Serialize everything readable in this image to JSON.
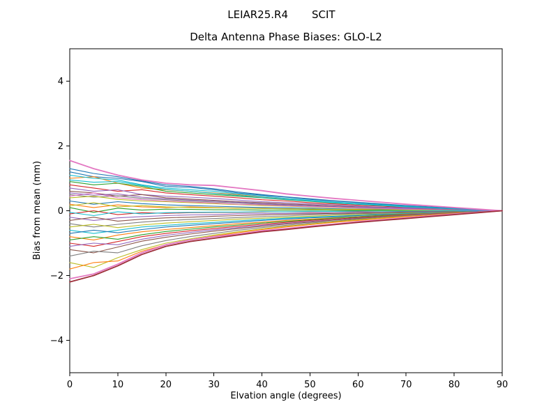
{
  "header": {
    "left": "LEIAR25.R4",
    "right": "SCIT"
  },
  "chart_data": {
    "type": "line",
    "title": "Delta Antenna Phase Biases: GLO-L2",
    "xlabel": "Elvation angle (degrees)",
    "ylabel": "Bias from mean (mm)",
    "xlim": [
      0,
      90
    ],
    "ylim": [
      -5,
      5
    ],
    "xticks": [
      0,
      10,
      20,
      30,
      40,
      50,
      60,
      70,
      80,
      90
    ],
    "yticks": [
      -4,
      -2,
      0,
      2,
      4
    ],
    "grid": false,
    "legend": "none",
    "x": [
      0,
      5,
      10,
      15,
      20,
      25,
      30,
      35,
      40,
      45,
      50,
      55,
      60,
      65,
      70,
      75,
      80,
      85,
      90
    ],
    "series": [
      {
        "color": "#1f77b4",
        "values": [
          1.2,
          1.05,
          1.0,
          0.9,
          0.75,
          0.72,
          0.65,
          0.55,
          0.48,
          0.42,
          0.35,
          0.3,
          0.25,
          0.2,
          0.15,
          0.11,
          0.07,
          0.03,
          0
        ]
      },
      {
        "color": "#ff7f0e",
        "values": [
          1.0,
          1.05,
          0.85,
          0.7,
          0.65,
          0.6,
          0.55,
          0.5,
          0.42,
          0.36,
          0.3,
          0.26,
          0.21,
          0.17,
          0.13,
          0.1,
          0.06,
          0.03,
          0
        ]
      },
      {
        "color": "#2ca02c",
        "values": [
          0.9,
          0.8,
          0.85,
          0.75,
          0.6,
          0.55,
          0.5,
          0.45,
          0.4,
          0.34,
          0.29,
          0.24,
          0.2,
          0.16,
          0.12,
          0.09,
          0.06,
          0.03,
          0
        ]
      },
      {
        "color": "#d62728",
        "values": [
          0.8,
          0.7,
          0.6,
          0.65,
          0.55,
          0.5,
          0.45,
          0.4,
          0.34,
          0.3,
          0.25,
          0.21,
          0.17,
          0.14,
          0.1,
          0.08,
          0.05,
          0.02,
          0
        ]
      },
      {
        "color": "#9467bd",
        "values": [
          0.7,
          0.6,
          0.65,
          0.5,
          0.45,
          0.42,
          0.38,
          0.33,
          0.28,
          0.25,
          0.21,
          0.18,
          0.14,
          0.11,
          0.09,
          0.06,
          0.04,
          0.02,
          0
        ]
      },
      {
        "color": "#8c564b",
        "values": [
          0.6,
          0.55,
          0.45,
          0.5,
          0.4,
          0.36,
          0.32,
          0.28,
          0.25,
          0.21,
          0.18,
          0.15,
          0.12,
          0.1,
          0.07,
          0.05,
          0.03,
          0.01,
          0
        ]
      },
      {
        "color": "#7f7f7f",
        "values": [
          0.5,
          0.42,
          0.46,
          0.38,
          0.34,
          0.3,
          0.27,
          0.24,
          0.2,
          0.17,
          0.14,
          0.12,
          0.1,
          0.08,
          0.06,
          0.04,
          0.02,
          0.01,
          0
        ]
      },
      {
        "color": "#bcbd22",
        "values": [
          0.4,
          0.45,
          0.35,
          0.3,
          0.28,
          0.25,
          0.22,
          0.19,
          0.16,
          0.14,
          0.12,
          0.1,
          0.08,
          0.06,
          0.05,
          0.03,
          0.02,
          0.01,
          0
        ]
      },
      {
        "color": "#17becf",
        "values": [
          1.1,
          1.0,
          0.95,
          0.8,
          0.7,
          0.65,
          0.6,
          0.52,
          0.45,
          0.38,
          0.32,
          0.27,
          0.22,
          0.18,
          0.14,
          0.1,
          0.07,
          0.03,
          0
        ]
      },
      {
        "color": "#1f77b4",
        "values": [
          0.3,
          0.2,
          0.28,
          0.22,
          0.18,
          0.16,
          0.14,
          0.12,
          0.1,
          0.09,
          0.08,
          0.06,
          0.05,
          0.04,
          0.03,
          0.02,
          0.01,
          0.01,
          0
        ]
      },
      {
        "color": "#ff7f0e",
        "values": [
          0.2,
          0.1,
          0.18,
          0.12,
          0.1,
          0.12,
          0.1,
          0.08,
          0.07,
          0.06,
          0.05,
          0.04,
          0.04,
          0.03,
          0.02,
          0.02,
          0.01,
          0,
          0
        ]
      },
      {
        "color": "#2ca02c",
        "values": [
          0.1,
          -0.05,
          0.08,
          0.02,
          0.05,
          0.04,
          0.03,
          0.03,
          0.02,
          0.02,
          0.02,
          0.01,
          0.01,
          0.01,
          0.01,
          0,
          0,
          0,
          0
        ]
      },
      {
        "color": "#d62728",
        "values": [
          -0.1,
          0,
          -0.12,
          -0.06,
          -0.08,
          -0.06,
          -0.05,
          -0.05,
          -0.04,
          -0.03,
          -0.03,
          -0.02,
          -0.02,
          -0.01,
          -0.01,
          -0.01,
          0,
          0,
          0
        ]
      },
      {
        "color": "#9467bd",
        "values": [
          -0.2,
          -0.3,
          -0.22,
          -0.18,
          -0.15,
          -0.13,
          -0.12,
          -0.1,
          -0.09,
          -0.08,
          -0.07,
          -0.06,
          -0.05,
          -0.04,
          -0.03,
          -0.02,
          -0.01,
          -0.01,
          0
        ]
      },
      {
        "color": "#8c564b",
        "values": [
          -0.3,
          -0.2,
          -0.32,
          -0.26,
          -0.22,
          -0.2,
          -0.17,
          -0.15,
          -0.13,
          -0.11,
          -0.1,
          -0.08,
          -0.07,
          -0.05,
          -0.04,
          -0.03,
          -0.02,
          -0.01,
          0
        ]
      },
      {
        "color": "#7f7f7f",
        "values": [
          -0.4,
          -0.5,
          -0.42,
          -0.35,
          -0.3,
          -0.27,
          -0.24,
          -0.21,
          -0.18,
          -0.16,
          -0.13,
          -0.11,
          -0.09,
          -0.08,
          -0.06,
          -0.04,
          -0.03,
          -0.01,
          0
        ]
      },
      {
        "color": "#bcbd22",
        "values": [
          -0.5,
          -0.42,
          -0.52,
          -0.44,
          -0.38,
          -0.34,
          -0.3,
          -0.26,
          -0.23,
          -0.2,
          -0.17,
          -0.14,
          -0.12,
          -0.1,
          -0.08,
          -0.06,
          -0.04,
          -0.02,
          0
        ]
      },
      {
        "color": "#17becf",
        "values": [
          -0.6,
          -0.7,
          -0.6,
          -0.5,
          -0.45,
          -0.4,
          -0.36,
          -0.31,
          -0.27,
          -0.23,
          -0.2,
          -0.17,
          -0.14,
          -0.11,
          -0.09,
          -0.06,
          -0.04,
          -0.02,
          0
        ]
      },
      {
        "color": "#1f77b4",
        "values": [
          -0.7,
          -0.6,
          -0.68,
          -0.58,
          -0.5,
          -0.45,
          -0.4,
          -0.35,
          -0.3,
          -0.26,
          -0.22,
          -0.19,
          -0.15,
          -0.12,
          -0.1,
          -0.07,
          -0.05,
          -0.02,
          0
        ]
      },
      {
        "color": "#ff7f0e",
        "values": [
          -0.8,
          -0.9,
          -0.75,
          -0.65,
          -0.58,
          -0.52,
          -0.46,
          -0.4,
          -0.35,
          -0.3,
          -0.26,
          -0.22,
          -0.18,
          -0.14,
          -0.11,
          -0.08,
          -0.05,
          -0.03,
          0
        ]
      },
      {
        "color": "#2ca02c",
        "values": [
          -0.9,
          -0.8,
          -0.88,
          -0.74,
          -0.64,
          -0.57,
          -0.5,
          -0.44,
          -0.38,
          -0.33,
          -0.28,
          -0.23,
          -0.19,
          -0.15,
          -0.12,
          -0.09,
          -0.06,
          -0.03,
          0
        ]
      },
      {
        "color": "#d62728",
        "values": [
          -1.0,
          -1.1,
          -0.95,
          -0.8,
          -0.7,
          -0.62,
          -0.55,
          -0.48,
          -0.42,
          -0.36,
          -0.3,
          -0.26,
          -0.21,
          -0.17,
          -0.13,
          -0.1,
          -0.06,
          -0.03,
          0
        ]
      },
      {
        "color": "#9467bd",
        "values": [
          -1.1,
          -1.0,
          -1.05,
          -0.88,
          -0.76,
          -0.67,
          -0.59,
          -0.52,
          -0.45,
          -0.39,
          -0.33,
          -0.28,
          -0.23,
          -0.18,
          -0.14,
          -0.1,
          -0.07,
          -0.03,
          0
        ]
      },
      {
        "color": "#8c564b",
        "values": [
          -1.2,
          -1.3,
          -1.12,
          -0.94,
          -0.82,
          -0.72,
          -0.63,
          -0.55,
          -0.48,
          -0.41,
          -0.35,
          -0.29,
          -0.24,
          -0.19,
          -0.15,
          -0.11,
          -0.07,
          -0.04,
          0
        ]
      },
      {
        "color": "#7f7f7f",
        "values": [
          -1.4,
          -1.25,
          -1.3,
          -1.08,
          -0.92,
          -0.8,
          -0.7,
          -0.6,
          -0.52,
          -0.45,
          -0.38,
          -0.32,
          -0.26,
          -0.21,
          -0.16,
          -0.12,
          -0.08,
          -0.04,
          0
        ]
      },
      {
        "color": "#bcbd22",
        "values": [
          -1.6,
          -1.75,
          -1.45,
          -1.2,
          -1.0,
          -0.87,
          -0.75,
          -0.65,
          -0.56,
          -0.48,
          -0.41,
          -0.34,
          -0.28,
          -0.22,
          -0.17,
          -0.13,
          -0.08,
          -0.04,
          0
        ]
      },
      {
        "color": "#17becf",
        "values": [
          0.95,
          0.88,
          0.9,
          0.78,
          0.66,
          0.6,
          0.54,
          0.47,
          0.41,
          0.35,
          0.3,
          0.25,
          0.2,
          0.16,
          0.12,
          0.09,
          0.06,
          0.03,
          0
        ]
      },
      {
        "color": "#1f77b4",
        "values": [
          1.3,
          1.15,
          1.05,
          0.92,
          0.8,
          0.75,
          0.68,
          0.58,
          0.5,
          0.43,
          0.37,
          0.31,
          0.26,
          0.21,
          0.16,
          0.12,
          0.08,
          0.04,
          0
        ]
      },
      {
        "color": "#ff7f0e",
        "values": [
          -1.8,
          -1.6,
          -1.55,
          -1.25,
          -1.05,
          -0.9,
          -0.78,
          -0.68,
          -0.58,
          -0.5,
          -0.43,
          -0.36,
          -0.3,
          -0.24,
          -0.18,
          -0.13,
          -0.09,
          -0.04,
          0
        ]
      },
      {
        "color": "#e377c2",
        "values": [
          0.45,
          0.55,
          0.4,
          0.34,
          0.3,
          0.27,
          0.24,
          0.2,
          0.18,
          0.15,
          0.13,
          0.11,
          0.09,
          0.07,
          0.05,
          0.04,
          0.02,
          0.01,
          0
        ]
      },
      {
        "color": "#bcbd22",
        "values": [
          0.15,
          0.25,
          0.12,
          0.16,
          0.12,
          0.1,
          0.09,
          0.08,
          0.07,
          0.06,
          0.05,
          0.04,
          0.03,
          0.03,
          0.02,
          0.01,
          0.01,
          0,
          0
        ]
      },
      {
        "color": "#17becf",
        "values": [
          -0.05,
          -0.15,
          -0.03,
          -0.1,
          -0.06,
          -0.05,
          -0.04,
          -0.04,
          -0.03,
          -0.03,
          -0.02,
          -0.02,
          -0.01,
          -0.01,
          -0.01,
          0,
          0,
          0,
          0
        ]
      },
      {
        "color": "#9467bd",
        "values": [
          0.55,
          0.48,
          0.52,
          0.42,
          0.37,
          0.33,
          0.3,
          0.26,
          0.22,
          0.19,
          0.16,
          0.13,
          0.11,
          0.09,
          0.07,
          0.05,
          0.03,
          0.01,
          0
        ]
      },
      {
        "color": "#e377c2",
        "width": 1.8,
        "values": [
          1.55,
          1.3,
          1.1,
          0.95,
          0.85,
          0.8,
          0.78,
          0.7,
          0.62,
          0.52,
          0.45,
          0.38,
          0.32,
          0.26,
          0.2,
          0.15,
          0.1,
          0.05,
          0
        ]
      },
      {
        "color": "#e377c2",
        "width": 1.8,
        "values": [
          -2.1,
          -1.95,
          -1.65,
          -1.3,
          -1.05,
          -0.9,
          -0.8,
          -0.72,
          -0.62,
          -0.55,
          -0.48,
          -0.41,
          -0.34,
          -0.28,
          -0.22,
          -0.16,
          -0.1,
          -0.05,
          0
        ]
      },
      {
        "color": "#9e2f3a",
        "width": 1.8,
        "values": [
          -2.2,
          -2.0,
          -1.7,
          -1.35,
          -1.1,
          -0.95,
          -0.85,
          -0.75,
          -0.65,
          -0.58,
          -0.5,
          -0.43,
          -0.36,
          -0.3,
          -0.24,
          -0.18,
          -0.12,
          -0.06,
          0
        ]
      }
    ]
  }
}
